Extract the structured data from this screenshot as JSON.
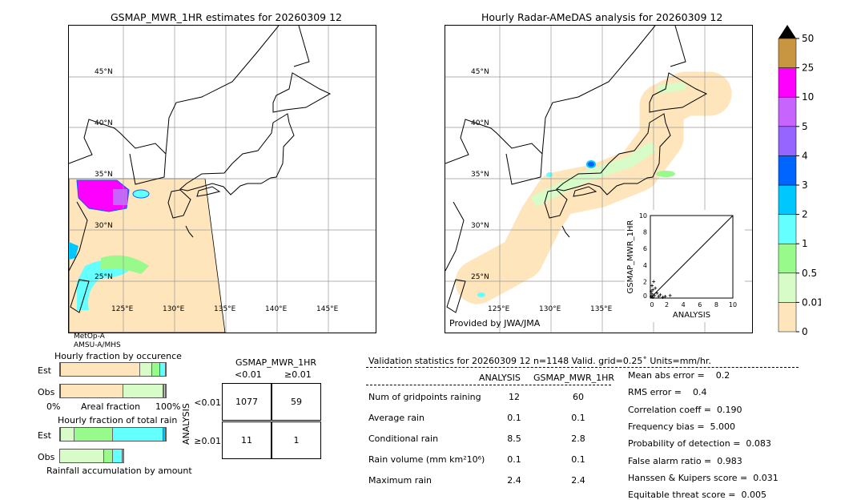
{
  "left_map": {
    "title": "GSMAP_MWR_1HR estimates for 20260309 12",
    "sat_label1": "MetOp-A",
    "sat_label2": "AMSU-A/MHS"
  },
  "right_map": {
    "title": "Hourly Radar-AMeDAS analysis for 20260309 12",
    "credit": "Provided by JWA/JMA"
  },
  "lat_labels": [
    "45°N",
    "40°N",
    "35°N",
    "30°N",
    "25°N"
  ],
  "lon_labels": [
    "125°E",
    "130°E",
    "135°E",
    "140°E",
    "145°E"
  ],
  "colorbar": {
    "levels": [
      "0",
      "0.01",
      "0.5",
      "1",
      "2",
      "3",
      "4",
      "5",
      "10",
      "25",
      "50"
    ],
    "colors": [
      "#fee5bb",
      "#d8fcc8",
      "#98fa8a",
      "#64ffff",
      "#00c8fe",
      "#0064fe",
      "#9664fe",
      "#c864fe",
      "#fe00fe",
      "#c89640"
    ]
  },
  "scatter": {
    "xlabel": "ANALYSIS",
    "ylabel": "GSMAP_MWR_1HR",
    "ticks": [
      "0",
      "2",
      "4",
      "6",
      "8",
      "10"
    ],
    "range": [
      0,
      10
    ],
    "points": [
      [
        0.1,
        0.2
      ],
      [
        0.2,
        0.5
      ],
      [
        0.3,
        1.0
      ],
      [
        0.5,
        0.3
      ],
      [
        0.8,
        0.6
      ],
      [
        1.0,
        0.2
      ],
      [
        1.2,
        0.4
      ],
      [
        1.5,
        0.1
      ],
      [
        0.2,
        1.5
      ],
      [
        0.4,
        2.0
      ],
      [
        2.4,
        0.3
      ],
      [
        0.1,
        0.8
      ],
      [
        0.6,
        1.2
      ],
      [
        0.3,
        0.1
      ],
      [
        1.8,
        0.2
      ]
    ]
  },
  "chart_data": [
    {
      "type": "bar",
      "title": "Hourly fraction by occurence",
      "xlabel": "Areal fraction",
      "x_min_label": "0%",
      "x_max_label": "100%",
      "categories": [
        "Est",
        "Obs"
      ],
      "series_percent": {
        "Est": [
          76,
          11,
          8,
          5
        ],
        "Obs": [
          60,
          37.5,
          1,
          1.5
        ]
      }
    },
    {
      "type": "bar",
      "title": "Hourly fraction of total rain",
      "xlabel": "Rainfall accumulation by amount",
      "categories": [
        "Est",
        "Obs"
      ],
      "series_percent": {
        "Est": [
          14,
          36,
          48,
          2
        ],
        "Obs": [
          42,
          8,
          9,
          1.5
        ]
      }
    }
  ],
  "contingency": {
    "title": "GSMAP_MWR_1HR",
    "col_labels": [
      "<0.01",
      "≥0.01"
    ],
    "row_axis": "ANALYSIS",
    "row_labels": [
      "<0.01",
      "≥0.01"
    ],
    "cells": [
      [
        "1077",
        "59"
      ],
      [
        "11",
        "1"
      ]
    ]
  },
  "stats": {
    "header": "Validation statistics for 20260309 12  n=1148 Valid. grid=0.25˚ Units=mm/hr.",
    "col1": "ANALYSIS",
    "col2": "GSMAP_MWR_1HR",
    "rows": [
      [
        "Num of gridpoints raining",
        "12",
        "60"
      ],
      [
        "Average rain",
        "0.1",
        "0.1"
      ],
      [
        "Conditional rain",
        "8.5",
        "2.8"
      ],
      [
        "Rain volume (mm km²10⁶)",
        "0.1",
        "0.1"
      ],
      [
        "Maximum rain",
        "2.4",
        "2.4"
      ]
    ],
    "scores": [
      "Mean abs error =    0.2",
      "RMS error =    0.4",
      "Correlation coeff =  0.190",
      "Frequency bias =  5.000",
      "Probability of detection =  0.083",
      "False alarm ratio =  0.983",
      "Hanssen & Kuipers score =  0.031",
      "Equitable threat score =  0.005"
    ]
  }
}
